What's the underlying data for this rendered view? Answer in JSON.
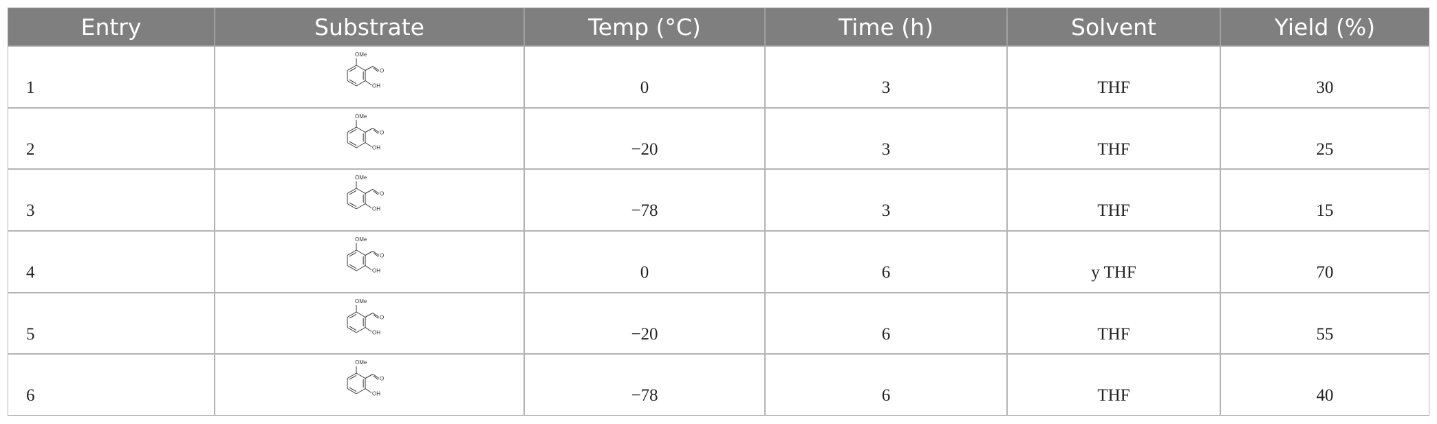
{
  "table": {
    "header": [
      "Entry",
      "Substrate",
      "Temp (°C)",
      "Time (h)",
      "Solvent",
      "Yield (%)"
    ],
    "rows": [
      {
        "entry": "1",
        "substrate": {
          "methoxy": "OMe",
          "hydroxy": "OH",
          "carbonyl": "O"
        },
        "temp": "0",
        "time": "3",
        "solvent": "THF",
        "yield": "30"
      },
      {
        "entry": "2",
        "substrate": {
          "methoxy": "OMe",
          "hydroxy": "OH",
          "carbonyl": "O"
        },
        "temp": "−20",
        "time": "3",
        "solvent": "THF",
        "yield": "25"
      },
      {
        "entry": "3",
        "substrate": {
          "methoxy": "OMe",
          "hydroxy": "OH",
          "carbonyl": "O"
        },
        "temp": "−78",
        "time": "3",
        "solvent": "THF",
        "yield": "15"
      },
      {
        "entry": "4",
        "substrate": {
          "methoxy": "OMe",
          "hydroxy": "OH",
          "carbonyl": "O"
        },
        "temp": "0",
        "time": "6",
        "solvent": "y THF",
        "yield": "70"
      },
      {
        "entry": "5",
        "substrate": {
          "methoxy": "OMe",
          "hydroxy": "OH",
          "carbonyl": "O"
        },
        "temp": "−20",
        "time": "6",
        "solvent": "THF",
        "yield": "55"
      },
      {
        "entry": "6",
        "substrate": {
          "methoxy": "OMe",
          "hydroxy": "OH",
          "carbonyl": "O"
        },
        "temp": "−78",
        "time": "6",
        "solvent": "THF",
        "yield": "40"
      }
    ]
  }
}
